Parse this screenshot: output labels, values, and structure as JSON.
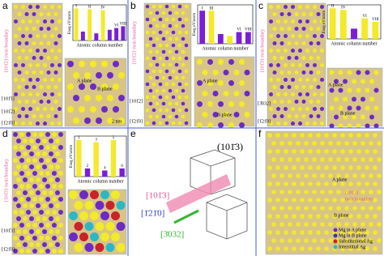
{
  "panels": [
    {
      "label": "a",
      "boundary": "{101̄2} twin boundary",
      "axes": [
        "[101̄1]",
        "[101̄2]",
        "[1̄21̄0]"
      ],
      "inset": [
        "A plane",
        "B plane",
        "2 nm"
      ],
      "chart": {
        "type": "bar",
        "ylabel": "Eseg eV/atom",
        "xlabel": "Atomic column number",
        "ylim": [
          0,
          1
        ],
        "categories": [
          "I",
          null,
          "II",
          null,
          "IV",
          null,
          "VI",
          "VIII"
        ],
        "values": [
          0.9,
          0.25,
          0.88,
          0.2,
          0.85,
          0.3,
          0.35,
          0.4
        ],
        "colors": [
          "#f2ea2a",
          "#7a1fd6",
          "#f2ea2a",
          "#7a1fd6",
          "#f2ea2a",
          "#7a1fd6",
          "#7a1fd6",
          "#7a1fd6"
        ]
      }
    },
    {
      "label": "b",
      "boundary": "{101̄2} twin boundary",
      "axes": [
        "[101̄2]",
        "[1̄21̄0]"
      ],
      "inset": [
        "A plane",
        "B plane"
      ],
      "chart": {
        "type": "bar",
        "ylabel": "Eseg eV/atom",
        "xlabel": "Atomic column number",
        "ylim": [
          0,
          1
        ],
        "categories": [
          "I",
          "III",
          null,
          null,
          "VI",
          "VIII"
        ],
        "values": [
          0.85,
          0.85,
          0.25,
          0.2,
          0.3,
          0.3
        ],
        "colors": [
          "#7a1fd6",
          "#f2ea2a",
          "#7a1fd6",
          "#f2ea2a",
          "#7a1fd6",
          "#7a1fd6"
        ]
      }
    },
    {
      "label": "c",
      "boundary": "{101̄3} twin boundary",
      "axes": [
        "[3̄032]",
        "[1̄21̄0]"
      ],
      "inset": [
        "A plane",
        "B plane"
      ],
      "chart": {
        "type": "bar",
        "ylabel": "Eseg eV/atom",
        "xlabel": "Atomic column number",
        "ylim": [
          0,
          1
        ],
        "categories": [
          "II",
          "IV",
          null,
          "VI",
          "VIII"
        ],
        "values": [
          0.9,
          0.85,
          0.3,
          0.6,
          0.5
        ],
        "colors": [
          "#f2ea2a",
          "#f2ea2a",
          "#7a1fd6",
          "#f2ea2a",
          "#f2ea2a"
        ]
      }
    },
    {
      "label": "d",
      "boundary": "{101̄3} twin boundary",
      "axes": [
        "[101̄3]",
        "[1̄21̄0]"
      ],
      "inset": [],
      "chart": {
        "type": "bar",
        "ylabel": "Eseg eV/atom",
        "xlabel": "Atomic column number",
        "ylim": [
          0,
          1
        ],
        "categories": [
          "1",
          "2",
          "3",
          "4",
          "5",
          "6"
        ],
        "values": [
          0.9,
          0.2,
          0.85,
          0.15,
          0.9,
          0.2
        ],
        "colors": [
          "#f2ea2a",
          "#7a1fd6",
          "#f2ea2a",
          "#7a1fd6",
          "#f2ea2a",
          "#7a1fd6"
        ]
      }
    },
    {
      "label": "e",
      "texts": [
        "(101̄3)",
        "[101̄3]",
        "[1̄21̄0]",
        "[3̄032]"
      ]
    },
    {
      "label": "f",
      "texts": [
        "A plane",
        "B plane",
        "[101̄3]",
        "twin boundary"
      ],
      "legend": [
        "Mg in A plane",
        "Mg in B plane",
        "Substitutional Ag",
        "Interstitial Ag"
      ]
    }
  ]
}
